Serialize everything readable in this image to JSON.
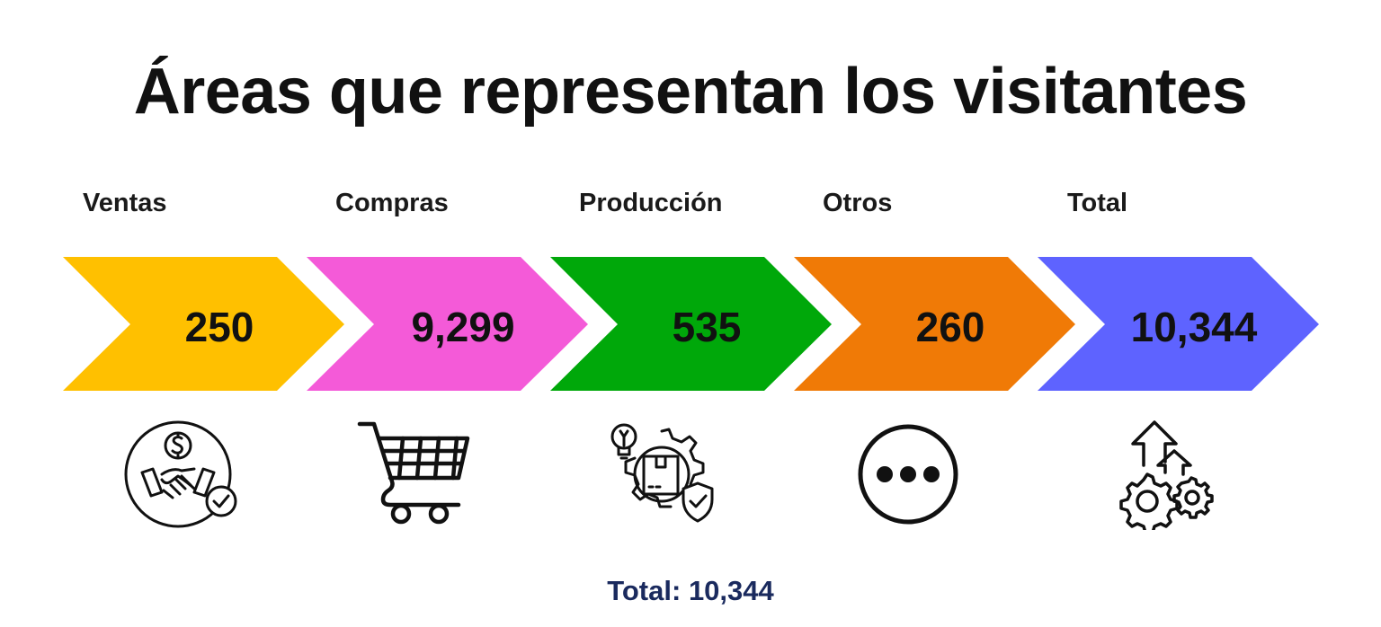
{
  "title": "Áreas que representan los visitantes",
  "footer": {
    "label": "Total:",
    "value": "10,344"
  },
  "steps": [
    {
      "label": "Ventas",
      "value": "250",
      "color": "#FFC000",
      "icon": "handshake-dollar-icon"
    },
    {
      "label": "Compras",
      "value": "9,299",
      "color": "#F45AD8",
      "icon": "shopping-cart-icon"
    },
    {
      "label": "Producción",
      "value": "535",
      "color": "#00A80A",
      "icon": "production-gear-icon"
    },
    {
      "label": "Otros",
      "value": "260",
      "color": "#F07A06",
      "icon": "more-dots-icon"
    },
    {
      "label": "Total",
      "value": "10,344",
      "color": "#5E63FF",
      "icon": "growth-gears-icon"
    }
  ]
}
